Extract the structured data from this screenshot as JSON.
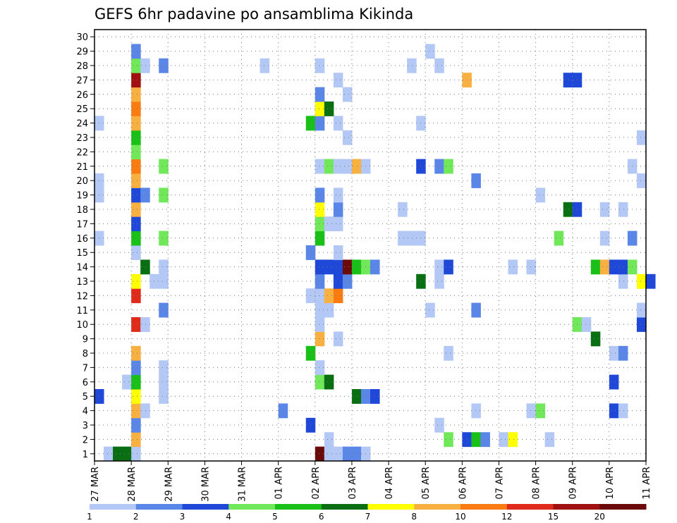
{
  "chart_data": {
    "type": "heatmap",
    "title": "GEFS 6hr padavine po ansamblima Kikinda",
    "x_tick_labels": [
      "27 MAR",
      "28 MAR",
      "29 MAR",
      "30 MAR",
      "31 MAR",
      "01 APR",
      "02 APR",
      "03 APR",
      "04 APR",
      "05 APR",
      "06 APR",
      "07 APR",
      "08 APR",
      "09 APR",
      "10 APR",
      "11 APR"
    ],
    "y_range": [
      0,
      30
    ],
    "y_tick_labels": [
      "1",
      "2",
      "3",
      "4",
      "5",
      "6",
      "7",
      "8",
      "9",
      "10",
      "11",
      "12",
      "13",
      "14",
      "15",
      "16",
      "17",
      "18",
      "19",
      "20",
      "21",
      "22",
      "23",
      "24",
      "25",
      "26",
      "27",
      "28",
      "29",
      "30"
    ],
    "x_range_steps": [
      0,
      60
    ],
    "grid": true,
    "colorbar": {
      "labels": [
        "1",
        "2",
        "3",
        "4",
        "5",
        "6",
        "7",
        "8",
        "10",
        "12",
        "15",
        "20"
      ],
      "colors": [
        "#b3c8f5",
        "#5a86e8",
        "#1f48d8",
        "#70e85a",
        "#18c018",
        "#0a6e12",
        "#ffff00",
        "#f8b040",
        "#f87c12",
        "#e02a1a",
        "#a01010",
        "#6a0a0a"
      ]
    },
    "cells": [
      [
        1,
        1,
        "A"
      ],
      [
        1,
        2,
        "F"
      ],
      [
        1,
        3,
        "F"
      ],
      [
        1,
        4,
        "A"
      ],
      [
        1,
        24,
        "L"
      ],
      [
        1,
        25,
        "A"
      ],
      [
        1,
        26,
        "A"
      ],
      [
        1,
        27,
        "B"
      ],
      [
        1,
        28,
        "B"
      ],
      [
        1,
        29,
        "A"
      ],
      [
        2,
        4,
        "H"
      ],
      [
        2,
        25,
        "A"
      ],
      [
        2,
        38,
        "D"
      ],
      [
        2,
        40,
        "C"
      ],
      [
        2,
        41,
        "E"
      ],
      [
        2,
        42,
        "B"
      ],
      [
        2,
        44,
        "A"
      ],
      [
        2,
        45,
        "G"
      ],
      [
        2,
        49,
        "A"
      ],
      [
        3,
        4,
        "B"
      ],
      [
        3,
        23,
        "C"
      ],
      [
        3,
        37,
        "A"
      ],
      [
        4,
        4,
        "H"
      ],
      [
        4,
        5,
        "A"
      ],
      [
        4,
        20,
        "B"
      ],
      [
        4,
        41,
        "A"
      ],
      [
        4,
        47,
        "A"
      ],
      [
        4,
        48,
        "D"
      ],
      [
        4,
        56,
        "C"
      ],
      [
        4,
        57,
        "A"
      ],
      [
        5,
        0,
        "C"
      ],
      [
        5,
        4,
        "G"
      ],
      [
        5,
        7,
        "A"
      ],
      [
        5,
        28,
        "F"
      ],
      [
        5,
        29,
        "B"
      ],
      [
        5,
        30,
        "C"
      ],
      [
        6,
        3,
        "A"
      ],
      [
        6,
        4,
        "E"
      ],
      [
        6,
        7,
        "A"
      ],
      [
        6,
        24,
        "D"
      ],
      [
        6,
        25,
        "F"
      ],
      [
        6,
        56,
        "C"
      ],
      [
        7,
        4,
        "B"
      ],
      [
        7,
        7,
        "A"
      ],
      [
        7,
        24,
        "A"
      ],
      [
        8,
        4,
        "H"
      ],
      [
        8,
        23,
        "E"
      ],
      [
        8,
        38,
        "A"
      ],
      [
        8,
        56,
        "A"
      ],
      [
        8,
        57,
        "B"
      ],
      [
        9,
        24,
        "H"
      ],
      [
        9,
        26,
        "A"
      ],
      [
        9,
        54,
        "F"
      ],
      [
        10,
        4,
        "J"
      ],
      [
        10,
        5,
        "A"
      ],
      [
        10,
        24,
        "A"
      ],
      [
        10,
        52,
        "D"
      ],
      [
        10,
        53,
        "A"
      ],
      [
        10,
        59,
        "C"
      ],
      [
        11,
        7,
        "B"
      ],
      [
        11,
        24,
        "A"
      ],
      [
        11,
        25,
        "A"
      ],
      [
        11,
        36,
        "A"
      ],
      [
        11,
        41,
        "B"
      ],
      [
        11,
        59,
        "A"
      ],
      [
        12,
        4,
        "J"
      ],
      [
        12,
        23,
        "A"
      ],
      [
        12,
        24,
        "A"
      ],
      [
        12,
        25,
        "H"
      ],
      [
        12,
        26,
        "I"
      ],
      [
        13,
        4,
        "G"
      ],
      [
        13,
        6,
        "A"
      ],
      [
        13,
        7,
        "A"
      ],
      [
        13,
        24,
        "B"
      ],
      [
        13,
        26,
        "C"
      ],
      [
        13,
        27,
        "B"
      ],
      [
        13,
        35,
        "F"
      ],
      [
        13,
        37,
        "A"
      ],
      [
        13,
        57,
        "A"
      ],
      [
        13,
        59,
        "G"
      ],
      [
        13,
        60,
        "C"
      ],
      [
        14,
        5,
        "F"
      ],
      [
        14,
        7,
        "A"
      ],
      [
        14,
        24,
        "C"
      ],
      [
        14,
        25,
        "C"
      ],
      [
        14,
        26,
        "C"
      ],
      [
        14,
        27,
        "L"
      ],
      [
        14,
        28,
        "E"
      ],
      [
        14,
        29,
        "D"
      ],
      [
        14,
        30,
        "B"
      ],
      [
        14,
        37,
        "A"
      ],
      [
        14,
        38,
        "C"
      ],
      [
        14,
        45,
        "A"
      ],
      [
        14,
        47,
        "A"
      ],
      [
        14,
        54,
        "E"
      ],
      [
        14,
        55,
        "H"
      ],
      [
        14,
        56,
        "C"
      ],
      [
        14,
        57,
        "C"
      ],
      [
        14,
        58,
        "D"
      ],
      [
        15,
        4,
        "A"
      ],
      [
        15,
        23,
        "B"
      ],
      [
        15,
        26,
        "A"
      ],
      [
        16,
        4,
        "E"
      ],
      [
        16,
        7,
        "D"
      ],
      [
        16,
        0,
        "A"
      ],
      [
        16,
        24,
        "E"
      ],
      [
        16,
        33,
        "A"
      ],
      [
        16,
        34,
        "A"
      ],
      [
        16,
        35,
        "A"
      ],
      [
        16,
        50,
        "D"
      ],
      [
        16,
        55,
        "A"
      ],
      [
        16,
        58,
        "B"
      ],
      [
        17,
        4,
        "C"
      ],
      [
        17,
        24,
        "D"
      ],
      [
        17,
        25,
        "A"
      ],
      [
        17,
        26,
        "A"
      ],
      [
        18,
        4,
        "H"
      ],
      [
        18,
        24,
        "G"
      ],
      [
        18,
        26,
        "B"
      ],
      [
        18,
        33,
        "A"
      ],
      [
        18,
        51,
        "F"
      ],
      [
        18,
        52,
        "C"
      ],
      [
        18,
        55,
        "A"
      ],
      [
        18,
        57,
        "A"
      ],
      [
        19,
        0,
        "A"
      ],
      [
        19,
        4,
        "C"
      ],
      [
        19,
        5,
        "B"
      ],
      [
        19,
        7,
        "D"
      ],
      [
        19,
        24,
        "B"
      ],
      [
        19,
        26,
        "A"
      ],
      [
        19,
        48,
        "A"
      ],
      [
        20,
        0,
        "A"
      ],
      [
        20,
        4,
        "H"
      ],
      [
        20,
        41,
        "B"
      ],
      [
        20,
        59,
        "A"
      ],
      [
        21,
        4,
        "I"
      ],
      [
        21,
        7,
        "D"
      ],
      [
        21,
        24,
        "A"
      ],
      [
        21,
        25,
        "D"
      ],
      [
        21,
        26,
        "A"
      ],
      [
        21,
        27,
        "A"
      ],
      [
        21,
        28,
        "H"
      ],
      [
        21,
        29,
        "A"
      ],
      [
        21,
        35,
        "C"
      ],
      [
        21,
        37,
        "B"
      ],
      [
        21,
        38,
        "D"
      ],
      [
        21,
        58,
        "A"
      ],
      [
        22,
        4,
        "D"
      ],
      [
        23,
        4,
        "E"
      ],
      [
        23,
        27,
        "A"
      ],
      [
        23,
        59,
        "A"
      ],
      [
        24,
        0,
        "A"
      ],
      [
        24,
        4,
        "H"
      ],
      [
        24,
        23,
        "E"
      ],
      [
        24,
        24,
        "B"
      ],
      [
        24,
        26,
        "A"
      ],
      [
        24,
        35,
        "A"
      ],
      [
        25,
        4,
        "I"
      ],
      [
        25,
        24,
        "G"
      ],
      [
        25,
        25,
        "F"
      ],
      [
        26,
        4,
        "H"
      ],
      [
        26,
        24,
        "B"
      ],
      [
        26,
        27,
        "A"
      ],
      [
        27,
        4,
        "K"
      ],
      [
        27,
        26,
        "A"
      ],
      [
        27,
        40,
        "H"
      ],
      [
        27,
        51,
        "C"
      ],
      [
        27,
        52,
        "C"
      ],
      [
        28,
        4,
        "D"
      ],
      [
        28,
        5,
        "A"
      ],
      [
        28,
        7,
        "B"
      ],
      [
        28,
        18,
        "A"
      ],
      [
        28,
        24,
        "A"
      ],
      [
        28,
        34,
        "A"
      ],
      [
        28,
        37,
        "A"
      ],
      [
        29,
        4,
        "B"
      ],
      [
        29,
        36,
        "A"
      ]
    ]
  }
}
